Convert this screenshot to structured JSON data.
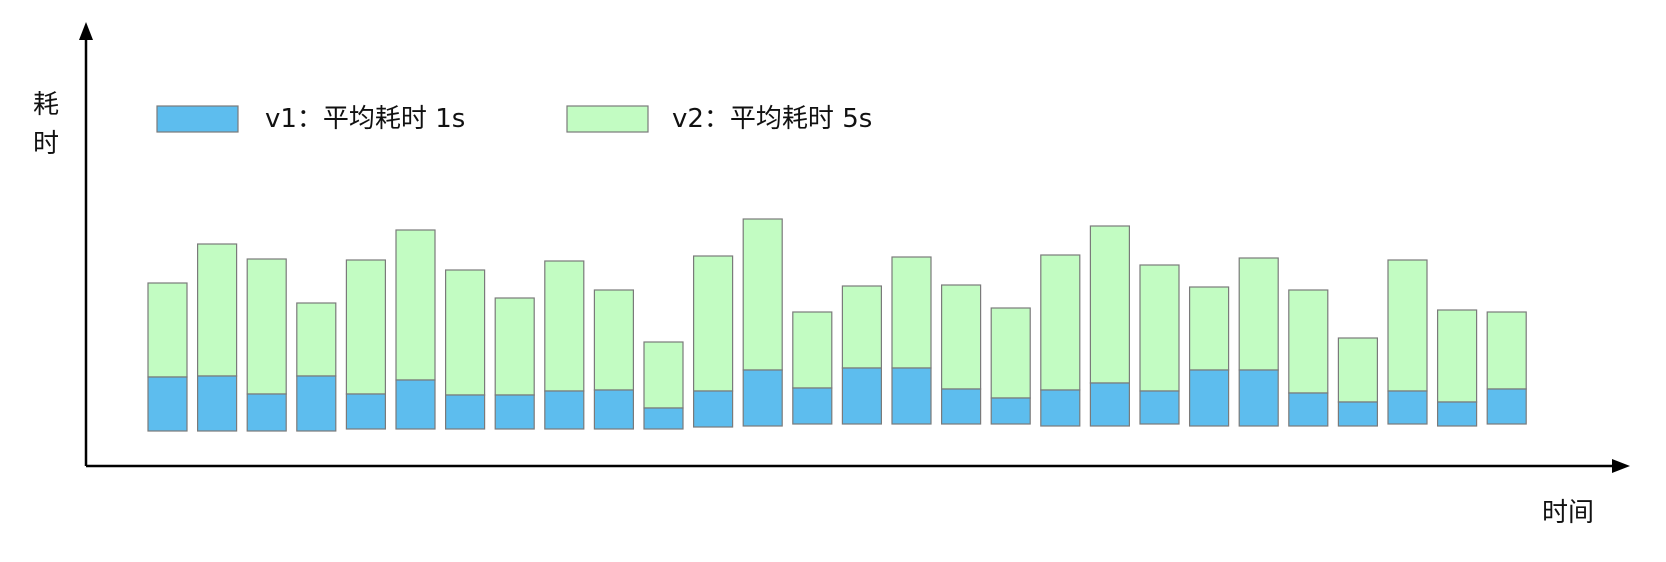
{
  "chart_data": {
    "type": "bar",
    "stacked": true,
    "ylabel": "耗时",
    "xlabel": "时间",
    "ticks_shown": false,
    "grid": false,
    "legend_position": "top-left",
    "series": [
      {
        "name": "v1：平均耗时 1s",
        "color": "#5dbdee",
        "values": [
          54,
          55,
          37,
          55,
          35,
          49,
          34,
          34,
          38,
          39,
          21,
          36,
          56,
          36,
          56,
          56,
          35,
          26,
          36,
          43,
          33,
          56,
          56,
          33,
          24,
          33,
          24,
          35
        ]
      },
      {
        "name": "v2：平均耗时 5s",
        "color": "#c2fcc2",
        "values": [
          94,
          132,
          135,
          73,
          134,
          150,
          125,
          97,
          130,
          100,
          66,
          135,
          151,
          76,
          82,
          111,
          104,
          90,
          135,
          157,
          126,
          83,
          112,
          103,
          64,
          131,
          92,
          77
        ]
      }
    ]
  }
}
